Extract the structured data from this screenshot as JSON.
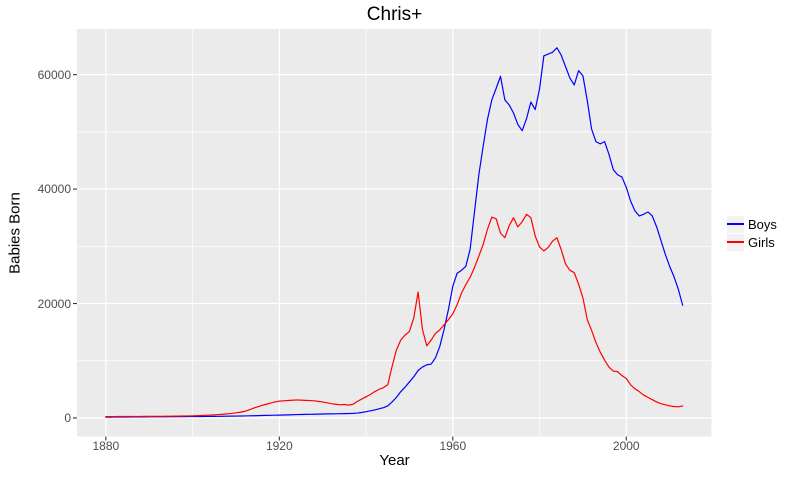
{
  "figure": {
    "title": "Chris+",
    "x_axis": {
      "title": "Year",
      "tick_labels": [
        "1880",
        "1920",
        "1960",
        "2000"
      ]
    },
    "y_axis": {
      "title": "Babies Born",
      "tick_labels": [
        "0",
        "20000",
        "40000",
        "60000"
      ]
    },
    "legend": {
      "items": [
        {
          "label": "Boys",
          "color": "#0000FF"
        },
        {
          "label": "Girls",
          "color": "#FF0000"
        }
      ]
    }
  },
  "chart_data": {
    "type": "line",
    "title": "Chris+",
    "xlabel": "Year",
    "ylabel": "Babies Born",
    "legend_position": "right",
    "grid": true,
    "panel_background": "#EBEBEB",
    "grid_color": "#FFFFFF",
    "tick_color": "#333333",
    "tick_label_color": "#4D4D4D",
    "x_ticks": [
      1880,
      1920,
      1960,
      2000
    ],
    "x_minor_ticks": [
      1900,
      1940,
      1980
    ],
    "y_ticks": [
      0,
      20000,
      40000,
      60000
    ],
    "y_minor_ticks": [
      10000,
      30000,
      50000
    ],
    "x_range": [
      1873.35,
      2019.65
    ],
    "y_range": [
      -3237,
      67977
    ],
    "ylim": [
      0,
      64700
    ],
    "x": [
      1880,
      1881,
      1882,
      1883,
      1884,
      1885,
      1886,
      1887,
      1888,
      1889,
      1890,
      1891,
      1892,
      1893,
      1894,
      1895,
      1896,
      1897,
      1898,
      1899,
      1900,
      1901,
      1902,
      1903,
      1904,
      1905,
      1906,
      1907,
      1908,
      1909,
      1910,
      1911,
      1912,
      1913,
      1914,
      1915,
      1916,
      1917,
      1918,
      1919,
      1920,
      1921,
      1922,
      1923,
      1924,
      1925,
      1926,
      1927,
      1928,
      1929,
      1930,
      1931,
      1932,
      1933,
      1934,
      1935,
      1936,
      1937,
      1938,
      1939,
      1940,
      1941,
      1942,
      1943,
      1944,
      1945,
      1946,
      1947,
      1948,
      1949,
      1950,
      1951,
      1952,
      1953,
      1954,
      1955,
      1956,
      1957,
      1958,
      1959,
      1960,
      1961,
      1962,
      1963,
      1964,
      1965,
      1966,
      1967,
      1968,
      1969,
      1970,
      1971,
      1972,
      1973,
      1974,
      1975,
      1976,
      1977,
      1978,
      1979,
      1980,
      1981,
      1982,
      1983,
      1984,
      1985,
      1986,
      1987,
      1988,
      1989,
      1990,
      1991,
      1992,
      1993,
      1994,
      1995,
      1996,
      1997,
      1998,
      1999,
      2000,
      2001,
      2002,
      2003,
      2004,
      2005,
      2006,
      2007,
      2008,
      2009,
      2010,
      2011,
      2012,
      2013
    ],
    "series": [
      {
        "name": "Boys",
        "color": "#0000FF",
        "values": [
          150,
          155,
          160,
          165,
          170,
          175,
          180,
          185,
          190,
          195,
          200,
          205,
          210,
          215,
          220,
          225,
          230,
          235,
          240,
          245,
          250,
          255,
          260,
          265,
          275,
          285,
          295,
          305,
          315,
          325,
          335,
          345,
          360,
          375,
          390,
          410,
          430,
          450,
          470,
          485,
          500,
          520,
          545,
          570,
          595,
          610,
          625,
          640,
          655,
          675,
          700,
          710,
          720,
          730,
          745,
          760,
          780,
          810,
          860,
          960,
          1100,
          1250,
          1400,
          1600,
          1800,
          2100,
          2800,
          3600,
          4600,
          5400,
          6300,
          7200,
          8300,
          8900,
          9300,
          9400,
          10500,
          12500,
          15500,
          19000,
          23000,
          25300,
          25800,
          26500,
          29500,
          36000,
          42500,
          47500,
          52200,
          55600,
          57600,
          59700,
          55600,
          54700,
          53300,
          51300,
          50200,
          52300,
          55200,
          53900,
          57500,
          63300,
          63600,
          63900,
          64700,
          63400,
          61400,
          59400,
          58200,
          60700,
          59800,
          55500,
          50500,
          48300,
          47900,
          48300,
          46100,
          43400,
          42500,
          42100,
          40300,
          37900,
          36200,
          35300,
          35600,
          36000,
          35300,
          33400,
          31000,
          28600,
          26500,
          24700,
          22500,
          19700
        ]
      },
      {
        "name": "Girls",
        "color": "#FF0000",
        "values": [
          240,
          245,
          250,
          255,
          260,
          262,
          265,
          268,
          272,
          276,
          280,
          285,
          290,
          295,
          300,
          310,
          320,
          330,
          345,
          360,
          380,
          400,
          430,
          470,
          510,
          550,
          600,
          650,
          710,
          790,
          900,
          1000,
          1150,
          1400,
          1700,
          1950,
          2200,
          2400,
          2600,
          2800,
          2950,
          3000,
          3050,
          3100,
          3150,
          3120,
          3080,
          3040,
          3000,
          2900,
          2800,
          2650,
          2500,
          2400,
          2300,
          2350,
          2250,
          2400,
          2900,
          3300,
          3700,
          4100,
          4600,
          5000,
          5300,
          5800,
          9000,
          11900,
          13600,
          14500,
          15100,
          17500,
          22000,
          15500,
          12600,
          13600,
          14800,
          15400,
          16300,
          17200,
          18200,
          19800,
          21800,
          23300,
          24600,
          26300,
          28300,
          30300,
          33000,
          35100,
          34800,
          32300,
          31500,
          33600,
          35000,
          33400,
          34300,
          35600,
          35000,
          31800,
          29900,
          29200,
          29800,
          30900,
          31500,
          29400,
          26900,
          25800,
          25400,
          23400,
          21000,
          17200,
          15300,
          13200,
          11500,
          10100,
          8900,
          8200,
          8100,
          7400,
          6900,
          5800,
          5100,
          4600,
          4000,
          3600,
          3200,
          2800,
          2500,
          2300,
          2100,
          2000,
          1950,
          2100
        ]
      }
    ]
  }
}
